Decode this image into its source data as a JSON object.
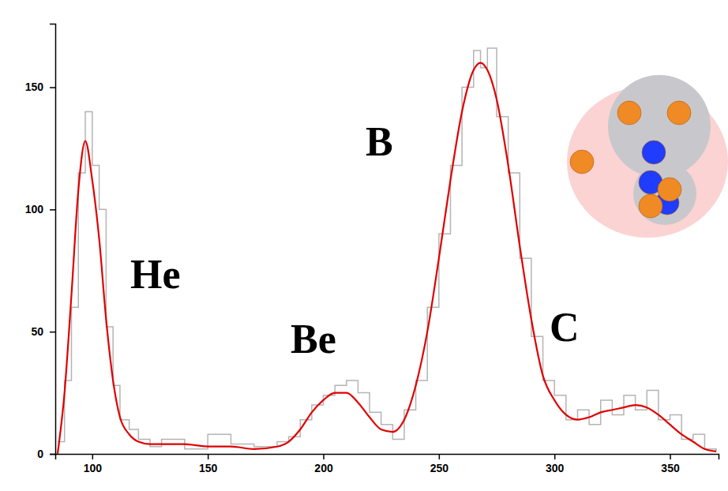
{
  "chart_data": {
    "type": "line",
    "x": [
      85,
      88,
      91,
      94,
      97,
      100,
      103,
      106,
      109,
      112,
      116,
      120,
      125,
      130,
      140,
      150,
      160,
      170,
      180,
      185,
      190,
      195,
      200,
      205,
      210,
      215,
      220,
      225,
      230,
      235,
      240,
      245,
      250,
      255,
      260,
      265,
      268,
      271,
      275,
      280,
      285,
      290,
      295,
      300,
      305,
      310,
      315,
      320,
      325,
      330,
      335,
      340,
      345,
      350,
      355,
      360,
      365,
      370
    ],
    "series": [
      {
        "color": "#b4b4b4",
        "line_style": "step",
        "values": [
          5,
          30,
          60,
          115,
          140,
          118,
          100,
          52,
          28,
          14,
          10,
          6,
          3,
          6,
          2,
          8,
          4,
          3,
          5,
          7,
          14,
          20,
          24,
          28,
          30,
          25,
          17,
          12,
          6,
          18,
          30,
          60,
          90,
          118,
          150,
          165,
          158,
          166,
          138,
          115,
          80,
          48,
          30,
          24,
          14,
          18,
          12,
          22,
          16,
          24,
          18,
          26,
          14,
          16,
          6,
          8,
          2,
          1
        ]
      },
      {
        "color": "#e00000",
        "line_style": "solid",
        "values": [
          0,
          25,
          65,
          108,
          128,
          112,
          88,
          55,
          30,
          15,
          8,
          5,
          4,
          4,
          4,
          3,
          3,
          2,
          3,
          5,
          10,
          17,
          22,
          25,
          25,
          21,
          15,
          10,
          9,
          14,
          28,
          50,
          80,
          112,
          140,
          157,
          160,
          157,
          145,
          118,
          85,
          55,
          32,
          22,
          16,
          14,
          15,
          17,
          18,
          19,
          20,
          19,
          16,
          12,
          8,
          5,
          2,
          1
        ]
      }
    ],
    "xlim": [
      84,
      371
    ],
    "ylim": [
      0,
      176
    ],
    "xticks": [
      100,
      150,
      200,
      250,
      300,
      350
    ],
    "yticks": [
      0,
      50,
      100,
      150
    ],
    "grid": false,
    "annotations": [
      "He",
      "Be",
      "B",
      "C"
    ]
  }
}
